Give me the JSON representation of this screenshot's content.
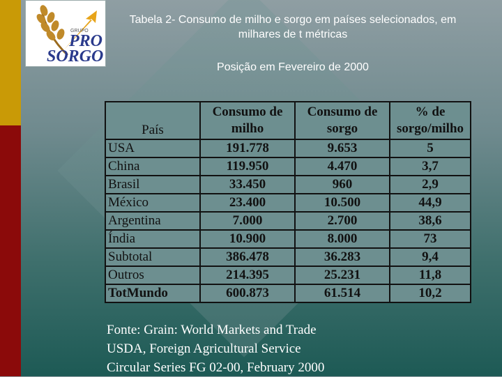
{
  "logo": {
    "top_text": "GRUPO",
    "line1": "PRO",
    "line2": "SORGO"
  },
  "title": "Tabela 2- Consumo de milho e sorgo em países selecionados, em milhares de t métricas",
  "subtitle": "Posição em Fevereiro de 2000",
  "table": {
    "headers": [
      "País",
      "Consumo de milho",
      "Consumo de sorgo",
      "% de sorgo/milho"
    ],
    "rows": [
      [
        "USA",
        "191.778",
        "9.653",
        "5"
      ],
      [
        "China",
        "119.950",
        "4.470",
        "3,7"
      ],
      [
        "Brasil",
        "33.450",
        "960",
        "2,9"
      ],
      [
        "México",
        "23.400",
        "10.500",
        "44,9"
      ],
      [
        "Argentina",
        "7.000",
        "2.700",
        "38,6"
      ],
      [
        "Índia",
        "10.900",
        "8.000",
        "73"
      ],
      [
        "Subtotal",
        "386.478",
        "36.283",
        "9,4"
      ],
      [
        "Outros",
        "214.395",
        "25.231",
        "11,8"
      ],
      [
        "TotMundo",
        "600.873",
        "61.514",
        "10,2"
      ]
    ]
  },
  "source": {
    "line1": "Fonte: Grain: World Markets and Trade",
    "line2": "USDA, Foreign Agricultural Service",
    "line3": "Circular Series FG 02-00, February 2000"
  }
}
